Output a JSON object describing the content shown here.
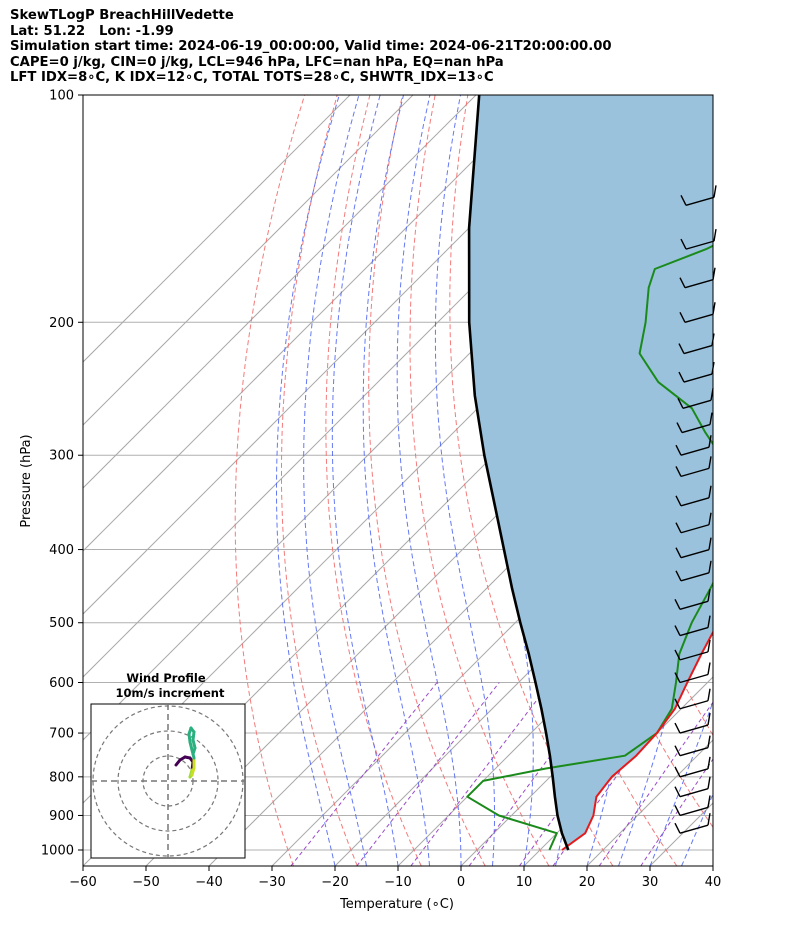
{
  "header": {
    "line1": "SkewTLogP BreachHillVedette",
    "line2": "Lat: 51.22   Lon: -1.99",
    "line3": "Simulation start time: 2024-06-19_00:00:00, Valid time: 2024-06-21T20:00:00.00",
    "line4": "CAPE=0 j/kg, CIN=0 j/kg, LCL=946 hPa, LFC=nan hPa, EQ=nan hPa",
    "line5": "LFT IDX=8∘C, K IDX=12∘C, TOTAL TOTS=28∘C, SHWTR_IDX=13∘C"
  },
  "chart_data": {
    "type": "line",
    "subtype": "skew-T log-P",
    "xlabel": "Temperature (∘C)",
    "ylabel": "Pressure (hPa)",
    "xlim": [
      -60,
      40
    ],
    "ylim": [
      1050,
      100
    ],
    "y_scale": "log",
    "x_ticks": [
      "−60",
      "−50",
      "−40",
      "−30",
      "−20",
      "−10",
      "0",
      "10",
      "20",
      "30",
      "40"
    ],
    "y_ticks": [
      "100",
      "200",
      "300",
      "400",
      "500",
      "600",
      "700",
      "800",
      "900",
      "1000"
    ],
    "grid": true,
    "colors": {
      "temperature": "#e41a1c",
      "dewpoint": "#1a8a1a",
      "parcel": "#000000",
      "cape_fill": "#9ac2dc",
      "dry_adiabat": "#f26d6d",
      "moist_adiabat": "#4a62f0",
      "mixing_ratio": "#9b4bc9",
      "isotherm": "#a9a9a9"
    },
    "series": [
      {
        "role": "temperature",
        "points": [
          [
            13.5,
            1000
          ],
          [
            14.5,
            950
          ],
          [
            13.0,
            900
          ],
          [
            10.5,
            850
          ],
          [
            9.8,
            800
          ],
          [
            10.3,
            750
          ],
          [
            10.0,
            700
          ],
          [
            9.0,
            650
          ],
          [
            6.8,
            600
          ],
          [
            4.5,
            550
          ],
          [
            2.2,
            500
          ],
          [
            -0.5,
            450
          ],
          [
            -3.5,
            400
          ],
          [
            -6.2,
            350
          ],
          [
            -9.2,
            310
          ],
          [
            -13.5,
            280
          ],
          [
            -20.0,
            270
          ],
          [
            -26.0,
            240
          ],
          [
            -31.0,
            220
          ],
          [
            -38.0,
            200
          ],
          [
            -45.5,
            180
          ],
          [
            -51.0,
            160
          ],
          [
            -55.0,
            150
          ],
          [
            -58.0,
            140
          ],
          [
            -61.0,
            130
          ],
          [
            -64.0,
            120
          ],
          [
            -68.0,
            110
          ],
          [
            -72.0,
            100
          ]
        ]
      },
      {
        "role": "dewpoint",
        "points": [
          [
            11.5,
            1000
          ],
          [
            10.0,
            950
          ],
          [
            -2.0,
            900
          ],
          [
            -10.0,
            850
          ],
          [
            -10.0,
            810
          ],
          [
            -2.0,
            780
          ],
          [
            8.5,
            750
          ],
          [
            10.0,
            700
          ],
          [
            8.5,
            650
          ],
          [
            5.0,
            600
          ],
          [
            1.0,
            550
          ],
          [
            -2.0,
            500
          ],
          [
            -4.5,
            450
          ],
          [
            -7.5,
            400
          ],
          [
            -12.5,
            350
          ],
          [
            -19.5,
            320
          ],
          [
            -24.0,
            300
          ],
          [
            -30.0,
            280
          ],
          [
            -36.0,
            260
          ],
          [
            -45.5,
            240
          ],
          [
            -53.0,
            220
          ],
          [
            -57.0,
            200
          ],
          [
            -62.0,
            180
          ],
          [
            -64.0,
            170
          ],
          [
            -59.0,
            160
          ],
          [
            -55.5,
            150
          ],
          [
            -52.0,
            140
          ],
          [
            -50.0,
            130
          ],
          [
            -48.5,
            120
          ],
          [
            -48.5,
            110
          ],
          [
            -49.5,
            100
          ]
        ]
      },
      {
        "role": "parcel",
        "points": [
          [
            14.5,
            1000
          ],
          [
            10.8,
            950
          ],
          [
            7.3,
            900
          ],
          [
            3.9,
            850
          ],
          [
            0.4,
            800
          ],
          [
            -3.4,
            750
          ],
          [
            -7.6,
            700
          ],
          [
            -12.2,
            650
          ],
          [
            -17.3,
            600
          ],
          [
            -22.9,
            550
          ],
          [
            -29.2,
            500
          ],
          [
            -36.0,
            450
          ],
          [
            -43.4,
            400
          ],
          [
            -51.8,
            350
          ],
          [
            -61.5,
            300
          ],
          [
            -72.5,
            250
          ],
          [
            -85.0,
            200
          ],
          [
            -100.0,
            150
          ],
          [
            -119.5,
            100
          ]
        ]
      }
    ],
    "wind_barbs_label": "",
    "inset": {
      "title": "Wind Profile",
      "subtitle": "10m/s increment",
      "rings_ms": [
        10,
        20,
        30
      ]
    }
  }
}
